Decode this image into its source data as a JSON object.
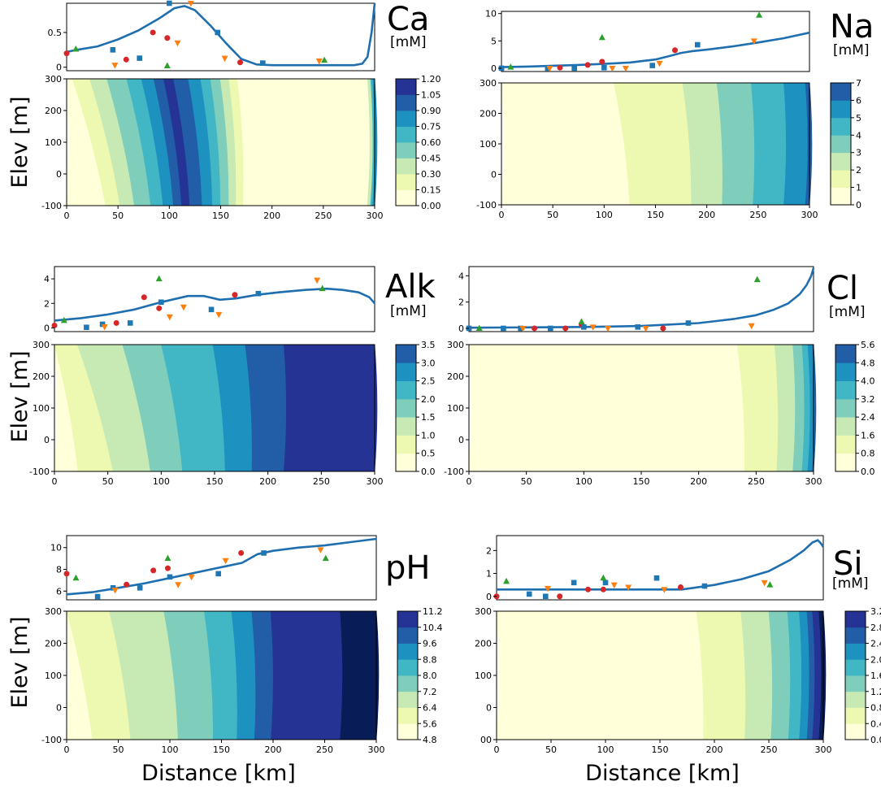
{
  "figure": {
    "ylabel": "Elev [m]",
    "xlabel": "Distance [km]",
    "colormap": [
      "#ffffd9",
      "#edf8b1",
      "#c7e9b4",
      "#7fcdbb",
      "#41b6c4",
      "#1d91c0",
      "#225ea8",
      "#253494",
      "#081d58"
    ],
    "line_color": "#1f6fb0",
    "marker_colors": {
      "circle": "#d62728",
      "square": "#1f77b4",
      "triangle_up": "#2ca02c",
      "triangle_down": "#ff7f0e"
    }
  },
  "chart_data": [
    {
      "type": "line+scatter+contour",
      "name": "Ca",
      "unit": "[mM]",
      "line": {
        "x": [
          0,
          10,
          30,
          50,
          70,
          90,
          105,
          115,
          125,
          140,
          155,
          170,
          185,
          200,
          250,
          280,
          288,
          293,
          297,
          300
        ],
        "y": [
          0.22,
          0.25,
          0.3,
          0.4,
          0.53,
          0.7,
          0.85,
          0.88,
          0.82,
          0.6,
          0.35,
          0.12,
          0.04,
          0.03,
          0.03,
          0.03,
          0.05,
          0.15,
          0.5,
          0.92
        ]
      },
      "markers": {
        "circle": [
          [
            0,
            0.2
          ],
          [
            58,
            0.11
          ],
          [
            84,
            0.5
          ],
          [
            98,
            0.42
          ],
          [
            169,
            0.07
          ]
        ],
        "square": [
          [
            45,
            0.25
          ],
          [
            71,
            0.13
          ],
          [
            100,
            0.92
          ],
          [
            147,
            0.5
          ],
          [
            191,
            0.06
          ]
        ],
        "triangle_up": [
          [
            9,
            0.26
          ],
          [
            98,
            0.02
          ],
          [
            251,
            0.1
          ]
        ],
        "triangle_down": [
          [
            47,
            0.03
          ],
          [
            108,
            0.35
          ],
          [
            121,
            0.92
          ],
          [
            154,
            0.13
          ],
          [
            246,
            0.09
          ]
        ]
      },
      "line_ylim": [
        -0.05,
        0.92
      ],
      "line_yticks": [
        0.0,
        0.5
      ],
      "colorbar": {
        "ticks": [
          "0.00",
          "0.15",
          "0.30",
          "0.45",
          "0.60",
          "0.75",
          "0.90",
          "1.05",
          "1.20"
        ],
        "vmin": 0.0,
        "vmax": 1.2
      },
      "contour": {
        "bands": [
          [
            0,
            0
          ],
          [
            38,
            1
          ],
          [
            52,
            2
          ],
          [
            66,
            3
          ],
          [
            82,
            4
          ],
          [
            94,
            5
          ],
          [
            104,
            6
          ],
          [
            112,
            7
          ],
          [
            120,
            6
          ],
          [
            132,
            5
          ],
          [
            142,
            4
          ],
          [
            150,
            3
          ],
          [
            158,
            2
          ],
          [
            165,
            1
          ],
          [
            172,
            0
          ],
          [
            290,
            0
          ],
          [
            293,
            2
          ],
          [
            296,
            4
          ],
          [
            298,
            5
          ],
          [
            300,
            5
          ]
        ],
        "tilt": 40,
        "tilt_end": 200
      },
      "contour_yticks": [
        "-100",
        "0",
        "100",
        "200",
        "300"
      ],
      "xticks": [
        "0",
        "50",
        "100",
        "150",
        "200",
        "250",
        "300"
      ]
    },
    {
      "type": "line+scatter+contour",
      "name": "Na",
      "unit": "[mM]",
      "line": {
        "x": [
          0,
          25,
          50,
          75,
          100,
          125,
          150,
          165,
          175,
          185,
          200,
          225,
          250,
          275,
          300
        ],
        "y": [
          0.2,
          0.3,
          0.45,
          0.6,
          0.8,
          1.05,
          1.6,
          2.3,
          2.8,
          3.1,
          3.4,
          4.0,
          4.7,
          5.5,
          6.5
        ]
      },
      "markers": {
        "circle": [
          [
            0,
            0.0
          ],
          [
            57,
            0.1
          ],
          [
            84,
            0.6
          ],
          [
            98,
            1.2
          ],
          [
            169,
            3.3
          ]
        ],
        "square": [
          [
            0,
            0.0
          ],
          [
            45,
            0.0
          ],
          [
            71,
            0.0
          ],
          [
            100,
            0.1
          ],
          [
            147,
            0.5
          ],
          [
            191,
            4.3
          ]
        ],
        "triangle_up": [
          [
            9,
            0.2
          ],
          [
            98,
            5.6
          ],
          [
            251,
            9.7
          ]
        ],
        "triangle_down": [
          [
            47,
            0.0
          ],
          [
            108,
            0.0
          ],
          [
            121,
            0.0
          ],
          [
            154,
            0.9
          ],
          [
            246,
            5.0
          ]
        ]
      },
      "line_ylim": [
        -0.6,
        10.4
      ],
      "line_yticks": [
        0,
        5,
        10
      ],
      "colorbar": {
        "ticks": [
          "0",
          "1",
          "2",
          "3",
          "4",
          "5",
          "6",
          "7"
        ],
        "vmin": 0,
        "vmax": 7
      },
      "contour": {
        "bands": [
          [
            0,
            0
          ],
          [
            125,
            1
          ],
          [
            185,
            2
          ],
          [
            215,
            3
          ],
          [
            245,
            4
          ],
          [
            275,
            5
          ],
          [
            296,
            6
          ],
          [
            300,
            6
          ]
        ],
        "tilt": 30,
        "tilt_end": 260
      },
      "contour_yticks": [
        "-100",
        "0",
        "100",
        "200",
        "300"
      ],
      "xticks": [
        "0",
        "50",
        "100",
        "150",
        "200",
        "250",
        "300"
      ]
    },
    {
      "type": "line+scatter+contour",
      "name": "Alk",
      "unit": "[mM]",
      "line": {
        "x": [
          0,
          25,
          50,
          75,
          100,
          125,
          140,
          155,
          170,
          190,
          210,
          235,
          255,
          270,
          285,
          295,
          300
        ],
        "y": [
          0.6,
          0.8,
          1.1,
          1.5,
          2.1,
          2.6,
          2.6,
          2.3,
          2.4,
          2.7,
          2.9,
          3.1,
          3.2,
          3.1,
          2.9,
          2.5,
          2.0
        ]
      },
      "markers": {
        "circle": [
          [
            0,
            0.2
          ],
          [
            58,
            0.4
          ],
          [
            84,
            2.5
          ],
          [
            98,
            1.6
          ],
          [
            169,
            2.7
          ]
        ],
        "square": [
          [
            30,
            0.05
          ],
          [
            45,
            0.3
          ],
          [
            71,
            0.4
          ],
          [
            100,
            2.1
          ],
          [
            147,
            1.5
          ],
          [
            191,
            2.8
          ]
        ],
        "triangle_up": [
          [
            9,
            0.6
          ],
          [
            98,
            4.0
          ],
          [
            251,
            3.2
          ]
        ],
        "triangle_down": [
          [
            47,
            0.1
          ],
          [
            108,
            0.9
          ],
          [
            121,
            1.7
          ],
          [
            154,
            1.1
          ],
          [
            246,
            3.9
          ]
        ]
      },
      "line_ylim": [
        -0.3,
        5.0
      ],
      "line_yticks": [
        0,
        2,
        4
      ],
      "colorbar": {
        "ticks": [
          "0.0",
          "0.5",
          "1.0",
          "1.5",
          "2.0",
          "2.5",
          "3.0",
          "3.5"
        ],
        "vmin": 0.0,
        "vmax": 3.5
      },
      "contour": {
        "bands": [
          [
            0,
            0
          ],
          [
            22,
            1
          ],
          [
            55,
            2
          ],
          [
            90,
            3
          ],
          [
            120,
            4
          ],
          [
            160,
            5
          ],
          [
            185,
            6
          ],
          [
            215,
            7
          ],
          [
            300,
            7
          ]
        ],
        "tilt": 45,
        "tilt_end": 215
      },
      "contour_yticks": [
        "-100",
        "0",
        "100",
        "200",
        "300"
      ],
      "xticks": [
        "0",
        "50",
        "100",
        "150",
        "200",
        "250",
        "300"
      ]
    },
    {
      "type": "line+scatter+contour",
      "name": "Cl",
      "unit": "[mM]",
      "line": {
        "x": [
          0,
          50,
          100,
          150,
          200,
          230,
          250,
          265,
          278,
          288,
          294,
          298,
          300
        ],
        "y": [
          0.05,
          0.07,
          0.1,
          0.18,
          0.4,
          0.7,
          1.0,
          1.4,
          1.9,
          2.6,
          3.3,
          4.0,
          4.6
        ]
      },
      "markers": {
        "circle": [
          [
            0,
            0.0
          ],
          [
            57,
            0.0
          ],
          [
            84,
            0.0
          ],
          [
            98,
            0.3
          ],
          [
            169,
            0.0
          ]
        ],
        "square": [
          [
            0,
            0.0
          ],
          [
            30,
            0.0
          ],
          [
            45,
            0.0
          ],
          [
            71,
            0.0
          ],
          [
            100,
            0.1
          ],
          [
            147,
            0.1
          ],
          [
            191,
            0.4
          ]
        ],
        "triangle_up": [
          [
            9,
            0.0
          ],
          [
            98,
            0.5
          ],
          [
            251,
            3.7
          ]
        ],
        "triangle_down": [
          [
            47,
            0.0
          ],
          [
            108,
            0.1
          ],
          [
            121,
            0.0
          ],
          [
            154,
            0.0
          ],
          [
            246,
            0.2
          ]
        ]
      },
      "line_ylim": [
        -0.25,
        4.7
      ],
      "line_yticks": [
        0,
        2,
        4
      ],
      "colorbar": {
        "ticks": [
          "0.0",
          "0.8",
          "1.6",
          "2.4",
          "3.2",
          "4.0",
          "4.8",
          "5.6"
        ],
        "vmin": 0.0,
        "vmax": 5.6
      },
      "contour": {
        "bands": [
          [
            0,
            0
          ],
          [
            240,
            1
          ],
          [
            268,
            2
          ],
          [
            282,
            3
          ],
          [
            290,
            4
          ],
          [
            295,
            5
          ],
          [
            299,
            6
          ],
          [
            300,
            6
          ]
        ],
        "tilt": 45,
        "tilt_end": 280
      },
      "contour_yticks": [
        "-100",
        "0",
        "100",
        "200",
        "300"
      ],
      "xticks": [
        "0",
        "50",
        "100",
        "150",
        "200",
        "250",
        "300"
      ]
    },
    {
      "type": "line+scatter+contour",
      "name": "pH",
      "unit": "",
      "line": {
        "x": [
          0,
          25,
          50,
          75,
          100,
          125,
          150,
          170,
          185,
          200,
          225,
          250,
          275,
          300
        ],
        "y": [
          5.7,
          5.9,
          6.3,
          6.7,
          7.2,
          7.7,
          8.2,
          8.6,
          9.4,
          9.7,
          10.0,
          10.2,
          10.5,
          10.8
        ]
      },
      "markers": {
        "circle": [
          [
            0,
            7.6
          ],
          [
            58,
            6.6
          ],
          [
            84,
            7.9
          ],
          [
            98,
            8.1
          ],
          [
            169,
            9.5
          ]
        ],
        "square": [
          [
            30,
            5.5
          ],
          [
            45,
            6.3
          ],
          [
            71,
            6.3
          ],
          [
            100,
            7.3
          ],
          [
            147,
            7.6
          ],
          [
            191,
            9.5
          ]
        ],
        "triangle_up": [
          [
            9,
            7.2
          ],
          [
            98,
            9.0
          ],
          [
            251,
            9.0
          ]
        ],
        "triangle_down": [
          [
            47,
            6.1
          ],
          [
            108,
            6.6
          ],
          [
            121,
            7.3
          ],
          [
            154,
            8.8
          ],
          [
            246,
            9.8
          ]
        ]
      },
      "line_ylim": [
        5.2,
        11.1
      ],
      "line_yticks": [
        6,
        8,
        10
      ],
      "colorbar": {
        "ticks": [
          "4.8",
          "5.6",
          "6.4",
          "7.2",
          "8.0",
          "8.8",
          "9.6",
          "10.4",
          "11.2"
        ],
        "vmin": 4.8,
        "vmax": 11.2
      },
      "contour": {
        "bands": [
          [
            0,
            0
          ],
          [
            25,
            1
          ],
          [
            62,
            2
          ],
          [
            108,
            3
          ],
          [
            142,
            4
          ],
          [
            165,
            5
          ],
          [
            182,
            6
          ],
          [
            198,
            7
          ],
          [
            265,
            8
          ],
          [
            300,
            8
          ]
        ],
        "tilt": 30,
        "tilt_end": 200
      },
      "contour_yticks": [
        "-100",
        "0",
        "100",
        "200",
        "300"
      ],
      "xticks": [
        "0",
        "50",
        "100",
        "150",
        "200",
        "250",
        "300"
      ]
    },
    {
      "type": "line+scatter+contour",
      "name": "Si",
      "unit": "[mM]",
      "line": {
        "x": [
          0,
          50,
          100,
          150,
          170,
          200,
          225,
          250,
          270,
          282,
          290,
          295,
          298,
          300
        ],
        "y": [
          0.3,
          0.3,
          0.3,
          0.3,
          0.3,
          0.5,
          0.75,
          1.1,
          1.6,
          2.0,
          2.35,
          2.45,
          2.3,
          2.15
        ]
      },
      "markers": {
        "circle": [
          [
            0,
            0.0
          ],
          [
            58,
            0.0
          ],
          [
            84,
            0.3
          ],
          [
            98,
            0.3
          ],
          [
            169,
            0.4
          ]
        ],
        "square": [
          [
            30,
            0.1
          ],
          [
            45,
            0.0
          ],
          [
            71,
            0.6
          ],
          [
            100,
            0.6
          ],
          [
            147,
            0.8
          ],
          [
            191,
            0.45
          ]
        ],
        "triangle_up": [
          [
            9,
            0.65
          ],
          [
            98,
            0.8
          ],
          [
            251,
            0.5
          ]
        ],
        "triangle_down": [
          [
            47,
            0.35
          ],
          [
            108,
            0.5
          ],
          [
            121,
            0.4
          ],
          [
            154,
            0.3
          ],
          [
            246,
            0.6
          ]
        ]
      },
      "line_ylim": [
        -0.15,
        2.65
      ],
      "line_yticks": [
        0,
        1,
        2
      ],
      "colorbar": {
        "ticks": [
          "0.0",
          "0.4",
          "0.8",
          "1.2",
          "1.6",
          "2.0",
          "2.4",
          "2.8",
          "3.2"
        ],
        "vmin": 0.0,
        "vmax": 3.2
      },
      "contour": {
        "bands": [
          [
            0,
            0
          ],
          [
            190,
            1
          ],
          [
            228,
            2
          ],
          [
            252,
            3
          ],
          [
            268,
            4
          ],
          [
            278,
            5
          ],
          [
            285,
            6
          ],
          [
            290,
            7
          ],
          [
            296,
            8
          ],
          [
            300,
            7
          ]
        ],
        "tilt": 20,
        "tilt_end": 280
      },
      "contour_yticks": [
        "00",
        "0",
        "100",
        "200",
        "300"
      ],
      "xticks": [
        "0",
        "50",
        "100",
        "150",
        "200",
        "250",
        "300"
      ]
    }
  ]
}
